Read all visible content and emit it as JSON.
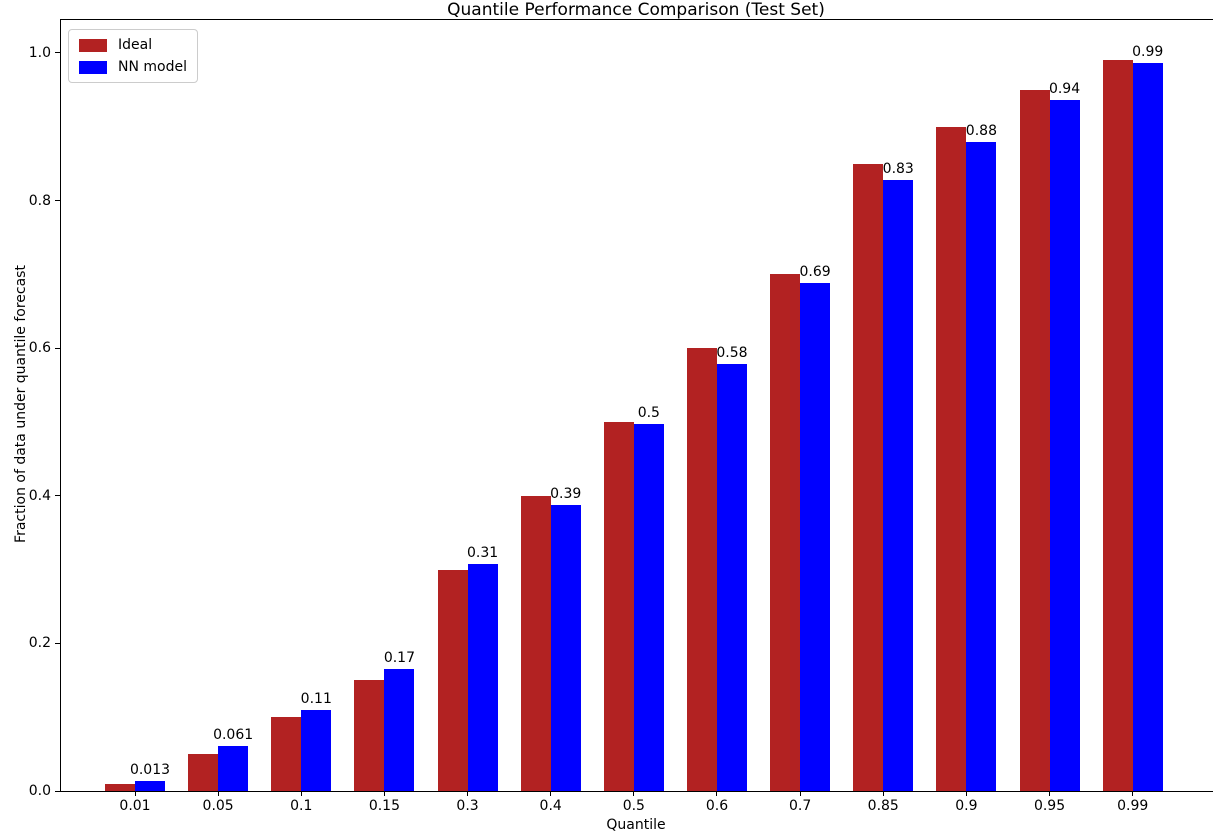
{
  "chart_data": {
    "type": "bar",
    "title": "Quantile Performance Comparison (Test Set)",
    "xlabel": "Quantile",
    "ylabel": "Fraction of data under quantile forecast",
    "categories": [
      "0.01",
      "0.05",
      "0.1",
      "0.15",
      "0.3",
      "0.4",
      "0.5",
      "0.6",
      "0.7",
      "0.85",
      "0.9",
      "0.95",
      "0.99"
    ],
    "series": [
      {
        "name": "Ideal",
        "color": "#b22222",
        "values": [
          0.01,
          0.05,
          0.1,
          0.15,
          0.3,
          0.4,
          0.5,
          0.6,
          0.7,
          0.85,
          0.9,
          0.95,
          0.99
        ]
      },
      {
        "name": "NN model",
        "color": "#0000ff",
        "values": [
          0.013,
          0.061,
          0.11,
          0.165,
          0.308,
          0.388,
          0.497,
          0.579,
          0.688,
          0.828,
          0.879,
          0.936,
          0.987
        ],
        "bar_labels": [
          "0.013",
          "0.061",
          "0.11",
          "0.17",
          "0.31",
          "0.39",
          "0.5",
          "0.58",
          "0.69",
          "0.83",
          "0.88",
          "0.94",
          "0.99"
        ]
      }
    ],
    "yticks": [
      {
        "value": 0.0,
        "label": "0.0"
      },
      {
        "value": 0.2,
        "label": "0.2"
      },
      {
        "value": 0.4,
        "label": "0.4"
      },
      {
        "value": 0.6,
        "label": "0.6"
      },
      {
        "value": 0.8,
        "label": "0.8"
      },
      {
        "value": 1.0,
        "label": "1.0"
      }
    ],
    "ylim": [
      0,
      1.0447
    ],
    "grid": false,
    "legend_position": "upper left",
    "colors": {
      "background": "#ffffff",
      "axes": "#000000",
      "text": "#000000",
      "legend_border": "#cccccc",
      "ideal_bar": "#b22222",
      "nn_bar": "#0000ff"
    }
  }
}
